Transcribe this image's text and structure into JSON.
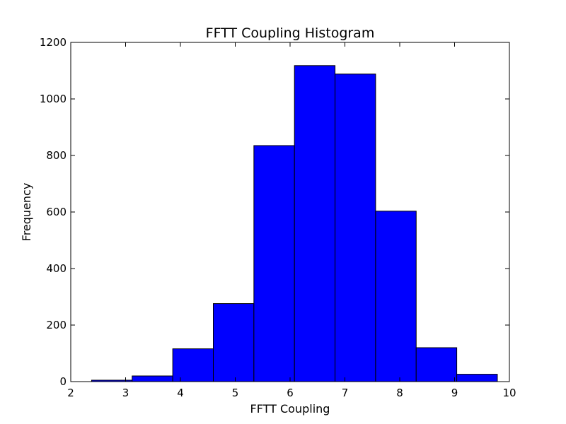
{
  "chart_data": {
    "type": "bar",
    "title": "FFTT Coupling Histogram",
    "xlabel": "FFTT Coupling",
    "ylabel": "Frequency",
    "xlim": [
      2,
      10
    ],
    "ylim": [
      0,
      1200
    ],
    "xticks": [
      2,
      3,
      4,
      5,
      6,
      7,
      8,
      9,
      10
    ],
    "yticks": [
      0,
      200,
      400,
      600,
      800,
      1000,
      1200
    ],
    "bin_edges": [
      2.38,
      3.12,
      3.86,
      4.6,
      5.34,
      6.08,
      6.82,
      7.56,
      8.3,
      9.04,
      9.78
    ],
    "values": [
      5,
      20,
      116,
      276,
      835,
      1118,
      1088,
      603,
      120,
      26
    ],
    "bar_color": "#0000ff",
    "edge_color": "#000000",
    "grid": false
  }
}
